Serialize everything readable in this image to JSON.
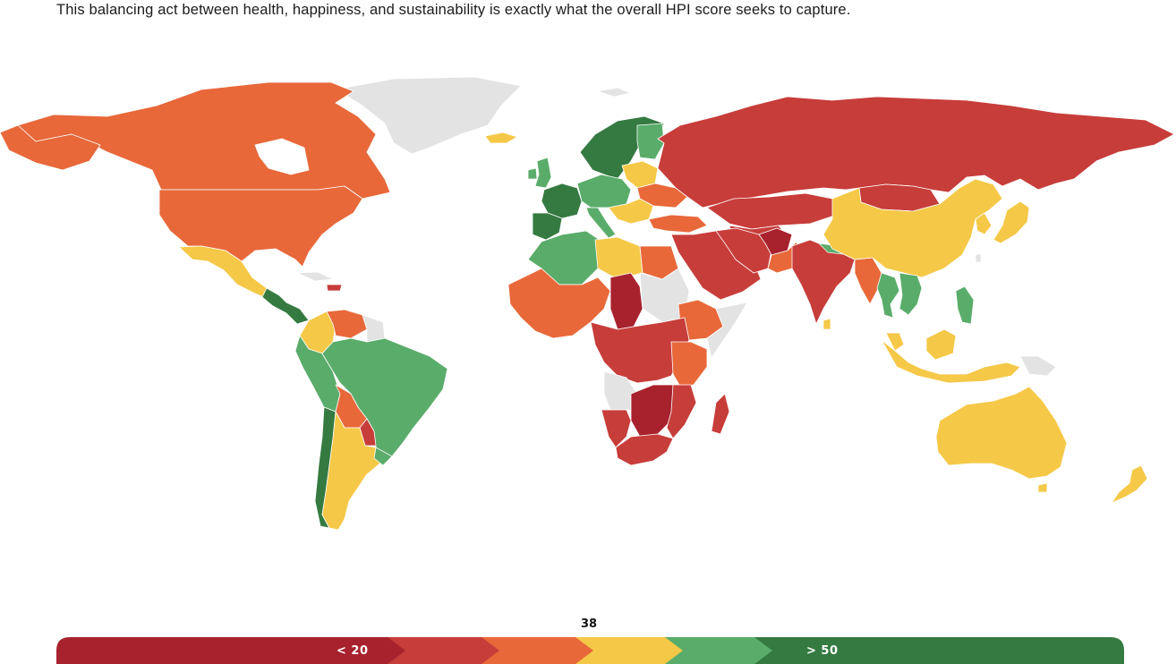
{
  "intro_text": "This balancing act between health, happiness, and sustainability is exactly what the overall HPI score seeks to capture.",
  "colors": {
    "band_1": "#a8222e",
    "band_2": "#c73d3a",
    "band_3": "#e8683a",
    "band_4": "#f5c847",
    "band_5": "#5aac6a",
    "band_6": "#357a41",
    "no_data": "#e3e3e3"
  },
  "legend": {
    "marker_value": "38",
    "low_label": "< 20",
    "high_label": "> 50",
    "bands": [
      {
        "id": "band-1",
        "color": "#a8222e"
      },
      {
        "id": "band-2",
        "color": "#c73d3a"
      },
      {
        "id": "band-3",
        "color": "#e8683a"
      },
      {
        "id": "band-4",
        "color": "#f5c847"
      },
      {
        "id": "band-5",
        "color": "#5aac6a"
      },
      {
        "id": "band-6",
        "color": "#357a41"
      }
    ]
  }
}
